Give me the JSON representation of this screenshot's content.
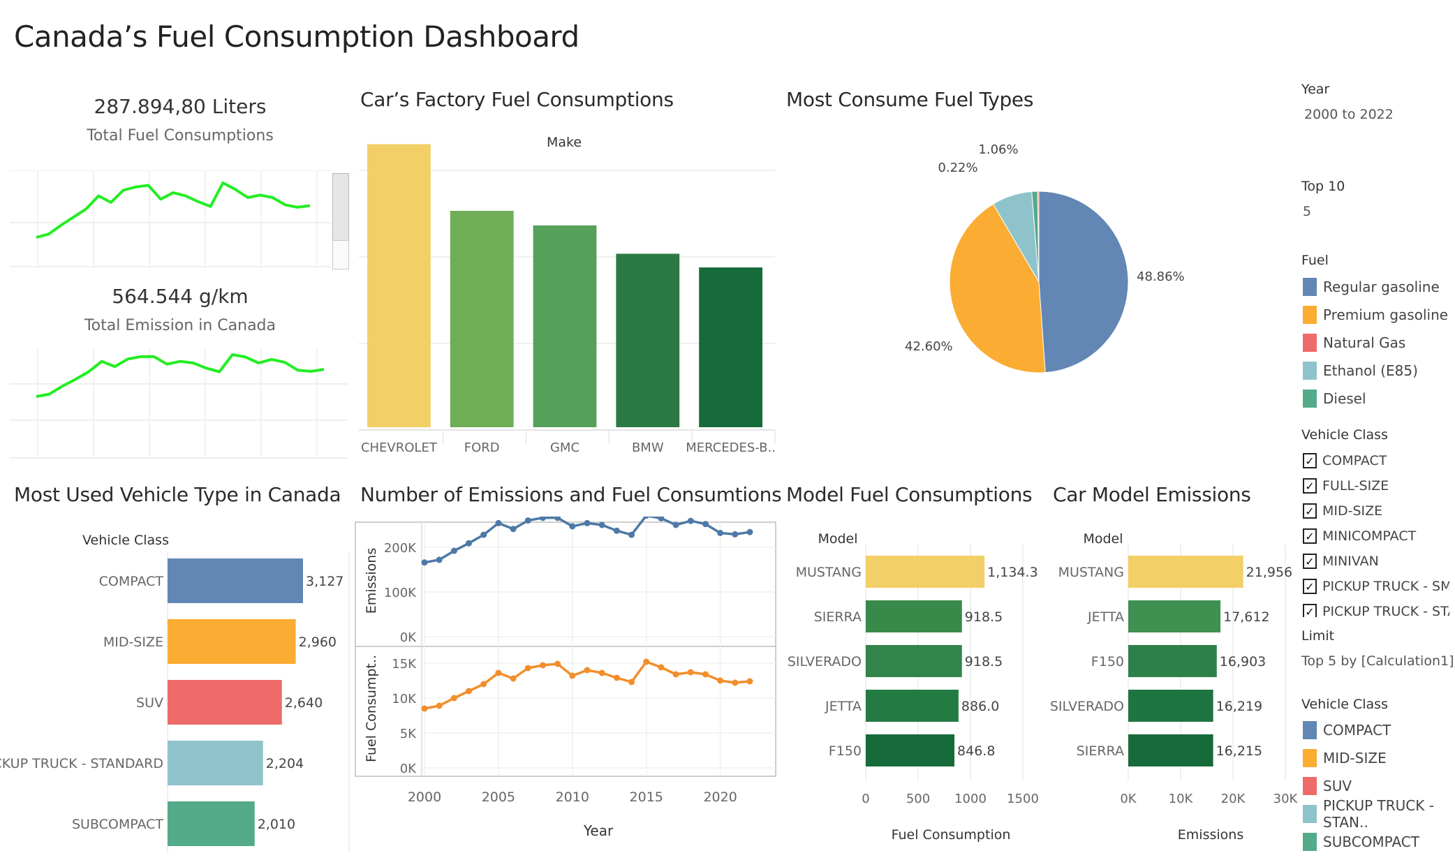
{
  "title": "Canada’s Fuel Consumption Dashboard",
  "kpi": {
    "fuel_value": "287.894,80 Liters",
    "fuel_label": "Total Fuel Consumptions",
    "emission_value": "564.544 g/km",
    "emission_label": "Total Emission in Canada"
  },
  "panels": {
    "factory": "Car’s Factory Fuel Consumptions",
    "fuel_types": "Most Consume Fuel Types",
    "vehicle_type": "Most Used Vehicle Type in Canada",
    "emissions_fuel": "Number of Emissions and Fuel Consumtions",
    "model_fuel": "Model Fuel Consumptions",
    "model_emissions": "Car Model Emissions"
  },
  "sidebar": {
    "year_label": "Year",
    "year_value": "2000 to 2022",
    "top_label": "Top 10",
    "top_value": "5",
    "fuel_label": "Fuel",
    "fuel_items": [
      {
        "label": "Regular gasoline",
        "color": "#6287b5"
      },
      {
        "label": "Premium gasoline",
        "color": "#fbac33"
      },
      {
        "label": "Natural Gas",
        "color": "#ee6b69"
      },
      {
        "label": "Ethanol (E85)",
        "color": "#8ec3cc"
      },
      {
        "label": "Diesel",
        "color": "#54ab89"
      }
    ],
    "class_filter_label": "Vehicle Class",
    "class_filter_items": [
      "COMPACT",
      "FULL-SIZE",
      "MID-SIZE",
      "MINICOMPACT",
      "MINIVAN",
      "PICKUP TRUCK - SMALL",
      "PICKUP TRUCK - STAN.."
    ],
    "check_mark": "✓",
    "limit_label": "Limit",
    "limit_value": "Top 5 by [Calculation1]",
    "class_legend_label": "Vehicle Class",
    "class_legend_items": [
      {
        "label": "COMPACT",
        "color": "#6287b5"
      },
      {
        "label": "MID-SIZE",
        "color": "#fbac33"
      },
      {
        "label": "SUV",
        "color": "#ee6b69"
      },
      {
        "label": "PICKUP TRUCK - STAN..",
        "color": "#8ec3cc"
      },
      {
        "label": "SUBCOMPACT",
        "color": "#54ab89"
      }
    ]
  },
  "chart_data": [
    {
      "id": "kpi-fuel-spark",
      "type": "line",
      "x": [
        2000,
        2001,
        2002,
        2003,
        2004,
        2005,
        2006,
        2007,
        2008,
        2009,
        2010,
        2011,
        2012,
        2013,
        2014,
        2015,
        2016,
        2017,
        2018,
        2019,
        2020,
        2021,
        2022
      ],
      "series": [
        {
          "values": [
            8.5,
            8.9,
            10.0,
            11.0,
            12.0,
            13.6,
            12.8,
            14.3,
            14.7,
            14.9,
            13.2,
            14.0,
            13.6,
            12.9,
            12.3,
            15.2,
            14.4,
            13.4,
            13.7,
            13.4,
            12.5,
            12.2,
            12.4
          ],
          "color": "#22ee22"
        }
      ],
      "grid": true
    },
    {
      "id": "kpi-emission-spark",
      "type": "line",
      "x": [
        2000,
        2001,
        2002,
        2003,
        2004,
        2005,
        2006,
        2007,
        2008,
        2009,
        2010,
        2011,
        2012,
        2013,
        2014,
        2015,
        2016,
        2017,
        2018,
        2019,
        2020,
        2021,
        2022
      ],
      "series": [
        {
          "values": [
            16.6,
            17.2,
            19.2,
            20.9,
            22.8,
            25.4,
            24.1,
            26.0,
            26.6,
            26.6,
            24.7,
            25.4,
            25.0,
            23.7,
            22.8,
            27.1,
            26.5,
            25.0,
            25.9,
            25.2,
            23.2,
            22.9,
            23.4
          ],
          "color": "#22ee22"
        }
      ],
      "grid": true
    },
    {
      "id": "factory",
      "type": "bar",
      "title": "Car’s Factory Fuel Consumptions",
      "xlabel": "Make",
      "categories": [
        "CHEVROLET",
        "FORD",
        "GMC",
        "BMW",
        "MERCEDES-B.."
      ],
      "values": [
        31000,
        23700,
        22100,
        19000,
        17500
      ],
      "colors": [
        "#f2cf67",
        "#6fae57",
        "#55a05a",
        "#2b7a44",
        "#176b3a"
      ],
      "ylim": [
        0,
        31500
      ],
      "grid": true
    },
    {
      "id": "fuel-types",
      "type": "pie",
      "title": "Most Consume Fuel Types",
      "categories": [
        "Regular gasoline",
        "Premium gasoline",
        "Ethanol (E85)",
        "Diesel",
        "Natural Gas"
      ],
      "values": [
        48.86,
        42.6,
        7.26,
        1.06,
        0.22
      ],
      "labels": [
        "48.86%",
        "42.60%",
        "",
        "1.06%",
        "0.22%"
      ],
      "colors": [
        "#6287b5",
        "#fbac33",
        "#8ec3cc",
        "#54ab89",
        "#ee6b69"
      ]
    },
    {
      "id": "vehicle-type",
      "type": "bar",
      "orientation": "horizontal",
      "title": "Most Used Vehicle Type in Canada",
      "ylabel": "Vehicle Class",
      "categories": [
        "COMPACT",
        "MID-SIZE",
        "SUV",
        "PICKUP TRUCK - STANDARD",
        "SUBCOMPACT"
      ],
      "values": [
        3127,
        2960,
        2640,
        2204,
        2010
      ],
      "labels": [
        "3,127",
        "2,960",
        "2,640",
        "2,204",
        "2,010"
      ],
      "colors": [
        "#6287b5",
        "#fbac33",
        "#ee6b69",
        "#8ec3cc",
        "#54ab89"
      ]
    },
    {
      "id": "emissions-fuel",
      "type": "line",
      "title": "Number of Emissions and Fuel Consumtions",
      "xlabel": "Year",
      "x": [
        2000,
        2001,
        2002,
        2003,
        2004,
        2005,
        2006,
        2007,
        2008,
        2009,
        2010,
        2011,
        2012,
        2013,
        2014,
        2015,
        2016,
        2017,
        2018,
        2019,
        2020,
        2021,
        2022
      ],
      "xticks": [
        2000,
        2005,
        2010,
        2015,
        2020
      ],
      "series": [
        {
          "ylabel": "Emissions",
          "color": "#4e79a7",
          "ylim": [
            0,
            250000
          ],
          "yticks": [
            0,
            100000,
            200000
          ],
          "yticklabels": [
            "0K",
            "100K",
            "200K"
          ],
          "values": [
            166000,
            172000,
            192000,
            209000,
            228000,
            254000,
            241000,
            260000,
            266000,
            266000,
            247000,
            254000,
            250000,
            237000,
            228000,
            271000,
            265000,
            250000,
            259000,
            252000,
            232000,
            229000,
            234000
          ]
        },
        {
          "ylabel": "Fuel Consumpt..",
          "color": "#f28e2b",
          "ylim": [
            0,
            17000
          ],
          "yticks": [
            0,
            5000,
            10000,
            15000
          ],
          "yticklabels": [
            "0K",
            "5K",
            "10K",
            "15K"
          ],
          "values": [
            8500,
            8900,
            10000,
            11000,
            12000,
            13600,
            12800,
            14300,
            14700,
            14900,
            13200,
            14000,
            13600,
            12900,
            12300,
            15200,
            14400,
            13400,
            13700,
            13400,
            12500,
            12200,
            12400
          ]
        }
      ]
    },
    {
      "id": "model-fuel",
      "type": "bar",
      "orientation": "horizontal",
      "title": "Model Fuel Consumptions",
      "ylabel": "Model",
      "xlabel": "Fuel Consumption",
      "categories": [
        "MUSTANG",
        "SIERRA",
        "SILVERADO",
        "JETTA",
        "F150"
      ],
      "values": [
        1134.3,
        918.5,
        918.5,
        886.0,
        846.8
      ],
      "labels": [
        "1,134.3",
        "918.5",
        "918.5",
        "886.0",
        "846.8"
      ],
      "colors": [
        "#f2cf67",
        "#388a4a",
        "#31844a",
        "#237a43",
        "#176b3a"
      ],
      "xlim": [
        0,
        1600
      ],
      "xticks": [
        0,
        500,
        1000,
        1500
      ],
      "xticklabels": [
        "0",
        "500",
        "1000",
        "1500"
      ]
    },
    {
      "id": "model-emissions",
      "type": "bar",
      "orientation": "horizontal",
      "title": "Car Model Emissions",
      "ylabel": "Model",
      "xlabel": "Emissions",
      "categories": [
        "MUSTANG",
        "JETTA",
        "F150",
        "SILVERADO",
        "SIERRA"
      ],
      "values": [
        21956,
        17612,
        16903,
        16219,
        16215
      ],
      "labels": [
        "21,956",
        "17,612",
        "16,903",
        "16,219",
        "16,215"
      ],
      "colors": [
        "#f2cf67",
        "#3f9051",
        "#2d8049",
        "#1f7541",
        "#176b3a"
      ],
      "xlim": [
        0,
        32000
      ],
      "xticks": [
        0,
        10000,
        20000,
        30000
      ],
      "xticklabels": [
        "0K",
        "10K",
        "20K",
        "30K"
      ]
    }
  ]
}
